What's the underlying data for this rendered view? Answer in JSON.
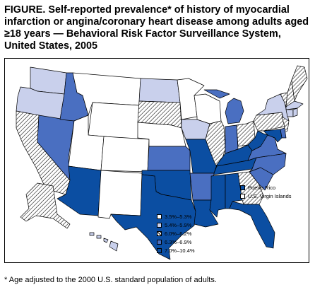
{
  "title": "FIGURE. Self-reported prevalence* of history of myocardial infarction or angina/coronary heart disease among adults aged ≥18 years — Behavioral Risk Factor Surveillance System, United States, 2005",
  "footnote": "* Age adjusted to the 2000 U.S. standard population of adults.",
  "colors": {
    "c1": "#ffffff",
    "c2": "#c9d0ec",
    "c3": "hatch",
    "c4": "#4a6fc1",
    "c5": "#0b4ea2"
  },
  "legend": {
    "classes": [
      {
        "id": "c1",
        "label": "3.5%–5.3%"
      },
      {
        "id": "c2",
        "label": "5.4%–5.9%"
      },
      {
        "id": "c3",
        "label": "6.0%–6.2%"
      },
      {
        "id": "c4",
        "label": "6.3%–6.9%"
      },
      {
        "id": "c5",
        "label": "7.0%–10.4%"
      }
    ],
    "territories": [
      {
        "id": "c5",
        "label": "Puerto Rico"
      },
      {
        "id": "c1",
        "label": "U.S. Virgin Islands"
      }
    ]
  },
  "states": {
    "WA": "c2",
    "OR": "c2",
    "CA": "c3",
    "NV": "c4",
    "ID": "c4",
    "MT": "c1",
    "WY": "c1",
    "UT": "c1",
    "AZ": "c5",
    "CO": "c1",
    "NM": "c1",
    "ND": "c2",
    "SD": "c3",
    "NE": "c1",
    "KS": "c4",
    "OK": "c5",
    "TX": "c5",
    "MN": "c1",
    "IA": "c2",
    "MO": "c5",
    "AR": "c4",
    "LA": "c5",
    "WI": "c1",
    "IL": "c3",
    "MI": "c4",
    "IN": "c4",
    "OH": "c3",
    "KY": "c5",
    "TN": "c5",
    "MS": "c5",
    "AL": "c5",
    "GA": "c3",
    "FL": "c5",
    "SC": "c4",
    "NC": "c4",
    "VA": "c4",
    "WV": "c5",
    "PA": "c3",
    "NY": "c2",
    "NJ": "c3",
    "DE": "c4",
    "MD": "c5",
    "ME": "c3",
    "NH": "c3",
    "VT": "c3",
    "MA": "c2",
    "CT": "c2",
    "RI": "c2",
    "AK": "c3",
    "HI": "c2"
  }
}
